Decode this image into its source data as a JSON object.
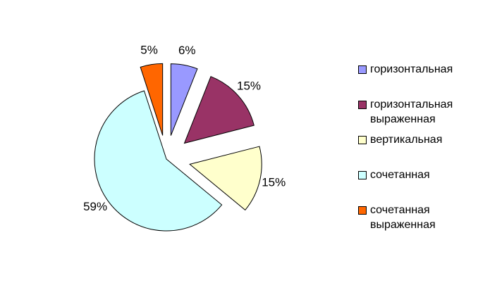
{
  "chart_data": {
    "type": "pie",
    "categories": [
      "горизонтальная",
      "горизонтальная выраженная",
      "вертикальная",
      "сочетанная",
      "сочетанная выраженная"
    ],
    "values": [
      6,
      15,
      15,
      59,
      5
    ],
    "value_labels": [
      "6%",
      "15%",
      "15%",
      "59%",
      "5%"
    ],
    "colors": [
      "#9999ff",
      "#993366",
      "#ffffcc",
      "#ccffff",
      "#ff6600"
    ]
  }
}
